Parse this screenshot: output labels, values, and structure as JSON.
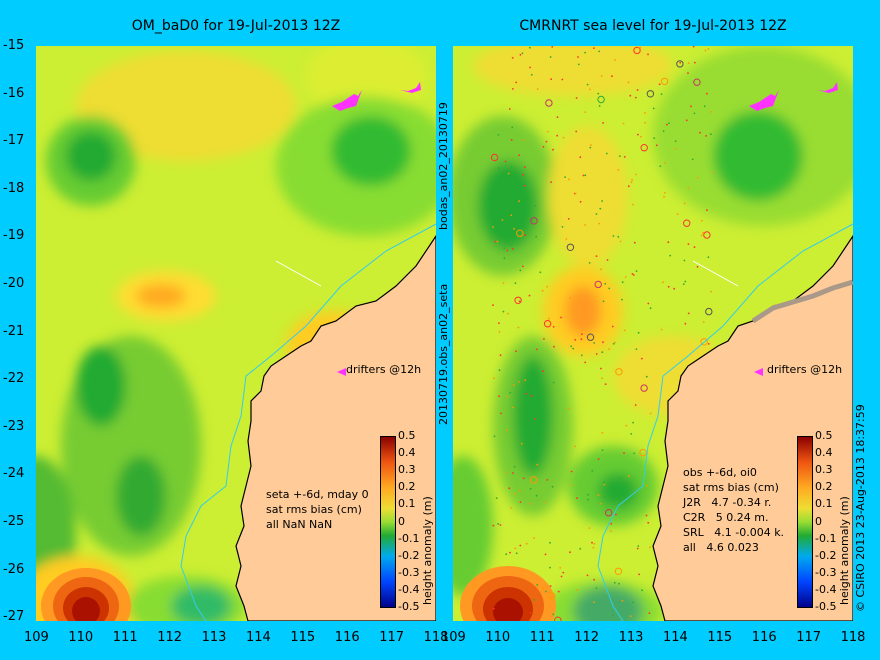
{
  "panels": {
    "left_title": "OM_baD0 for 19-Jul-2013 12Z",
    "right_title": "CMRNRT sea level  for 19-Jul-2013 12Z"
  },
  "axes": {
    "x_ticks": [
      "109",
      "110",
      "111",
      "112",
      "113",
      "114",
      "115",
      "116",
      "117",
      "118"
    ],
    "y_ticks": [
      "-15",
      "-16",
      "-17",
      "-18",
      "-19",
      "-20",
      "-21",
      "-22",
      "-23",
      "-24",
      "-25",
      "-26",
      "-27"
    ]
  },
  "labels": {
    "vertical_middle": "20130719.obs_an02_seta",
    "vertical_middle_top": "bodas_an02_20130719",
    "copyright": "© CSIRO 2013   23-Aug-2013 18:37:59",
    "drifters": "drifters @12h"
  },
  "left_stats": [
    "seta +-6d, mday 0",
    "sat rms bias (cm)",
    "all NaN NaN"
  ],
  "right_stats": [
    "obs +-6d, oi0",
    "sat rms bias (cm)",
    "J2R   4.7 -0.34 r.",
    "C2R   5 0.24 m.",
    "SRL   4.1 -0.004 k.",
    "all   4.6 0.023"
  ],
  "colorbar": {
    "label": "height anomaly (m)",
    "ticks": [
      "0.5",
      "0.4",
      "0.3",
      "0.2",
      "0.1",
      "0",
      "-0.1",
      "-0.2",
      "-0.3",
      "-0.4",
      "-0.5"
    ]
  },
  "colors": {
    "background": "#00ccff",
    "land": "#ffcc99",
    "drifter": "#ff33ff"
  }
}
